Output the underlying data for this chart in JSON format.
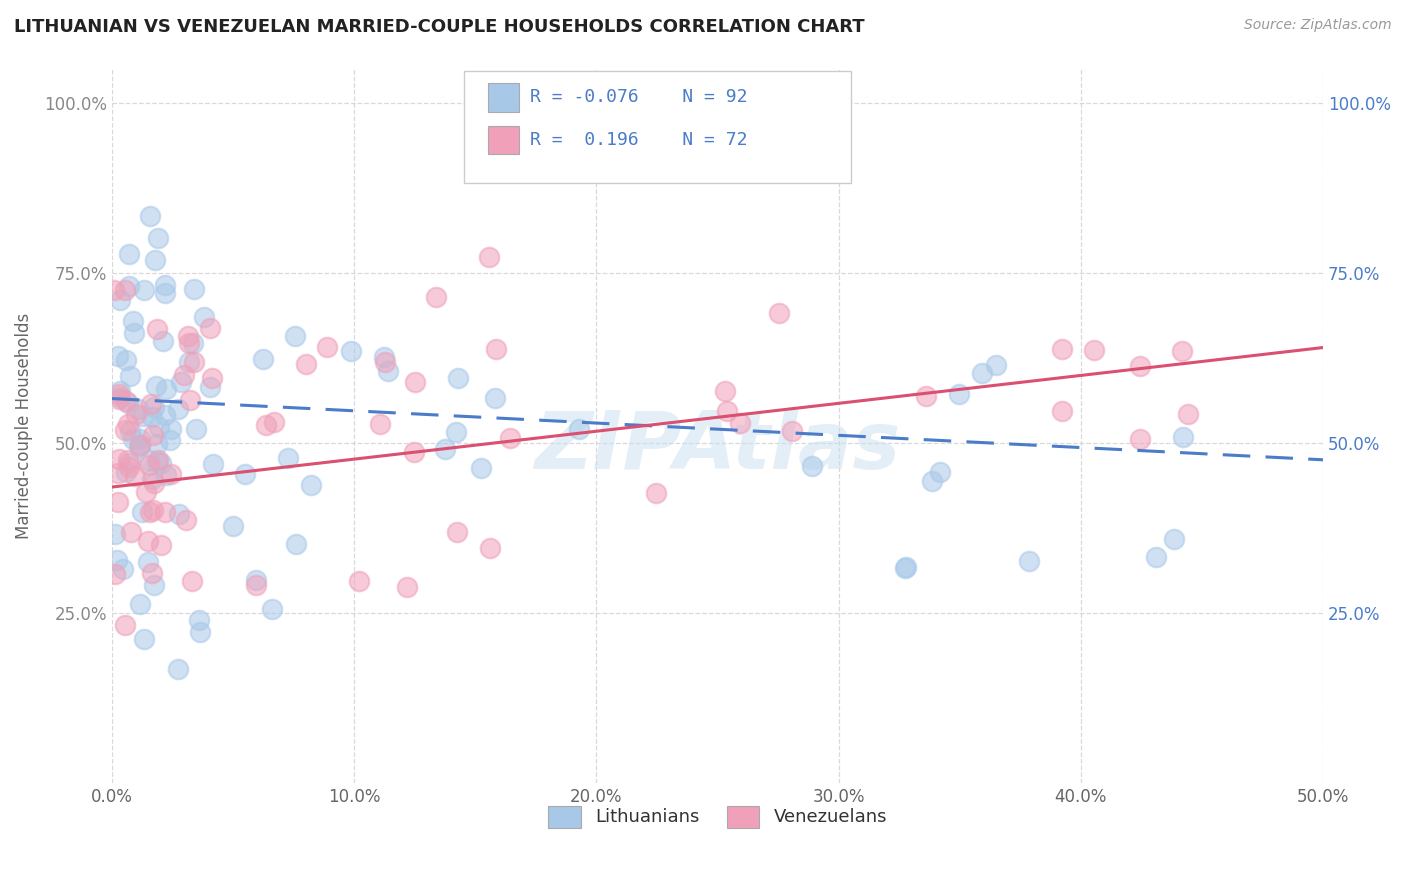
{
  "title": "LITHUANIAN VS VENEZUELAN MARRIED-COUPLE HOUSEHOLDS CORRELATION CHART",
  "source": "Source: ZipAtlas.com",
  "ylabel": "Married-couple Households",
  "xlim": [
    0.0,
    0.5
  ],
  "ylim": [
    0.0,
    1.05
  ],
  "xtick_labels": [
    "0.0%",
    "10.0%",
    "20.0%",
    "30.0%",
    "40.0%",
    "50.0%"
  ],
  "xtick_vals": [
    0.0,
    0.1,
    0.2,
    0.3,
    0.4,
    0.5
  ],
  "ytick_labels": [
    "25.0%",
    "50.0%",
    "75.0%",
    "100.0%"
  ],
  "ytick_vals": [
    0.25,
    0.5,
    0.75,
    1.0
  ],
  "color_blue": "#a8c8e8",
  "color_pink": "#f0a0b8",
  "color_blue_line": "#4a7cc9",
  "color_pink_line": "#d95070",
  "watermark": "ZIPAtlas",
  "legend_labels": [
    "Lithuanians",
    "Venezuelans"
  ],
  "R1": -0.076,
  "N1": 92,
  "R2": 0.196,
  "N2": 72,
  "seed1": 42,
  "seed2": 123
}
